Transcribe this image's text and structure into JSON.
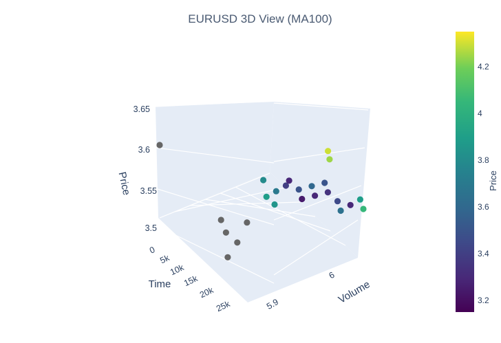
{
  "chart_data": {
    "type": "scatter",
    "title": "EURUSD 3D View (MA100)",
    "axes": {
      "time": {
        "label": "Time",
        "ticks": [
          "0",
          "5k",
          "10k",
          "15k",
          "20k",
          "25k"
        ]
      },
      "volume": {
        "label": "Volume",
        "ticks": [
          "5.9",
          "6"
        ]
      },
      "price": {
        "label": "Price",
        "ticks": [
          "3.5",
          "3.55",
          "3.6",
          "3.65"
        ]
      }
    },
    "colorbar": {
      "label": "Price",
      "colorscale": "Viridis",
      "range": [
        3.15,
        4.35
      ],
      "ticks": [
        "3.2",
        "3.4",
        "3.6",
        "3.8",
        "4",
        "4.2"
      ]
    },
    "outlier_color": "#666666",
    "series": [
      {
        "marker": "circle",
        "points": [
          {
            "time": 0,
            "volume": 5.9,
            "price": 3.62,
            "value": null
          },
          {
            "time": 9000,
            "volume": 5.95,
            "price": 3.54,
            "value": null
          },
          {
            "time": 8500,
            "volume": 5.96,
            "price": 3.52,
            "value": null
          },
          {
            "time": 10000,
            "volume": 5.97,
            "price": 3.51,
            "value": null
          },
          {
            "time": 11000,
            "volume": 5.98,
            "price": 3.54,
            "value": null
          },
          {
            "time": 7000,
            "volume": 5.97,
            "price": 3.48,
            "value": null
          },
          {
            "time": 12000,
            "volume": 6.0,
            "price": 3.6,
            "value": 3.8
          },
          {
            "time": 13000,
            "volume": 6.0,
            "price": 3.58,
            "value": 3.9
          },
          {
            "time": 13500,
            "volume": 6.01,
            "price": 3.57,
            "value": 3.85
          },
          {
            "time": 14000,
            "volume": 6.01,
            "price": 3.59,
            "value": 3.7
          },
          {
            "time": 15000,
            "volume": 6.02,
            "price": 3.6,
            "value": 3.4
          },
          {
            "time": 16000,
            "volume": 6.02,
            "price": 3.61,
            "value": 3.3
          },
          {
            "time": 17000,
            "volume": 6.03,
            "price": 3.6,
            "value": 3.5
          },
          {
            "time": 18000,
            "volume": 6.03,
            "price": 3.59,
            "value": 3.25
          },
          {
            "time": 19000,
            "volume": 6.04,
            "price": 3.61,
            "value": 3.6
          },
          {
            "time": 20000,
            "volume": 6.04,
            "price": 3.6,
            "value": 3.3
          },
          {
            "time": 21000,
            "volume": 6.05,
            "price": 3.62,
            "value": 3.5
          },
          {
            "time": 22000,
            "volume": 6.05,
            "price": 3.61,
            "value": 3.35
          },
          {
            "time": 23000,
            "volume": 6.06,
            "price": 3.6,
            "value": 3.45
          },
          {
            "time": 24000,
            "volume": 6.06,
            "price": 3.59,
            "value": 3.65
          },
          {
            "time": 25000,
            "volume": 6.07,
            "price": 3.6,
            "value": 3.3
          },
          {
            "time": 26000,
            "volume": 6.08,
            "price": 3.61,
            "value": 3.9
          },
          {
            "time": 27000,
            "volume": 6.08,
            "price": 3.6,
            "value": 4.05
          },
          {
            "time": 20000,
            "volume": 6.06,
            "price": 3.66,
            "value": 4.3
          },
          {
            "time": 20500,
            "volume": 6.06,
            "price": 3.65,
            "value": 4.25
          }
        ]
      }
    ]
  }
}
